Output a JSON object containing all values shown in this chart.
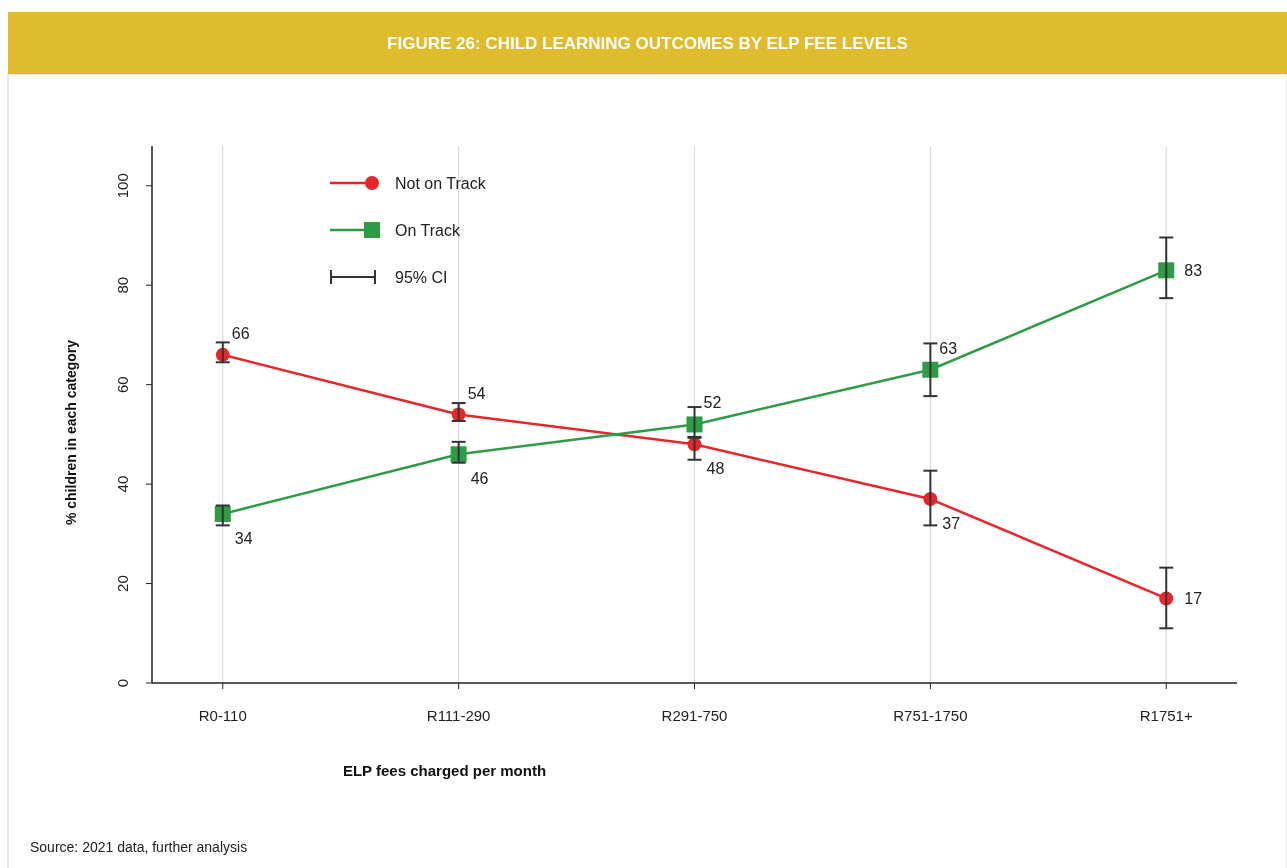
{
  "chart_data": {
    "type": "line",
    "title": "FIGURE 26: CHILD LEARNING OUTCOMES BY ELP FEE LEVELS",
    "xlabel": "ELP fees charged per month",
    "ylabel": "% children in each category",
    "categories": [
      "R0-110",
      "R111-290",
      "R291-750",
      "R751-1750",
      "R1751+"
    ],
    "series": [
      {
        "name": "Not on Track",
        "color": "#e8262a",
        "marker": "circle",
        "values": [
          66,
          54,
          48,
          37,
          17
        ],
        "errors": [
          [
            64.5,
            68.5
          ],
          [
            52.7,
            56.3
          ],
          [
            44.9,
            49.3
          ],
          [
            31.7,
            42.7
          ],
          [
            11.0,
            23.2
          ]
        ]
      },
      {
        "name": "On Track",
        "color": "#2e9b45",
        "marker": "square",
        "values": [
          34,
          46,
          52,
          63,
          83
        ],
        "errors": [
          [
            31.7,
            35.7
          ],
          [
            44.3,
            48.5
          ],
          [
            49.5,
            55.5
          ],
          [
            57.7,
            68.3
          ],
          [
            77.4,
            89.6
          ]
        ]
      }
    ],
    "ylim": [
      0,
      108
    ],
    "yticks": [
      0,
      20,
      40,
      60,
      80,
      100
    ],
    "grid": "x",
    "legend": "top left",
    "data_labels": true,
    "line_style": "solid",
    "annotations": [
      "95% CI",
      "Source: 2021 data, further analysis"
    ]
  }
}
